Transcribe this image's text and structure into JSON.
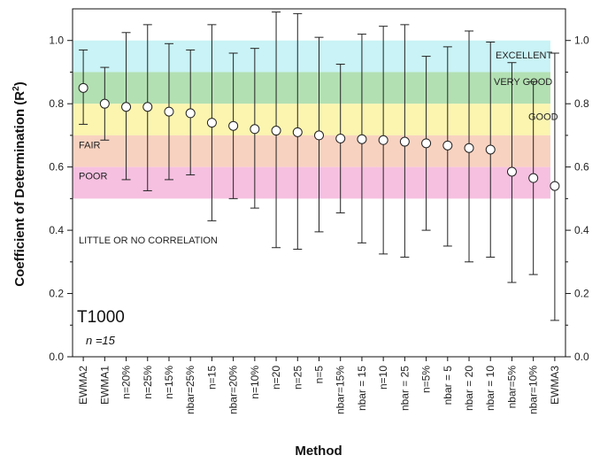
{
  "chart_data": {
    "type": "scatter",
    "title": "",
    "xlabel": "Method",
    "ylabel": "Coefficient of Determination (R",
    "ylabel_sup": "2",
    "ylabel_end": ")",
    "ylim": [
      0.0,
      1.1
    ],
    "yticks": [
      0.0,
      0.2,
      0.4,
      0.6,
      0.8,
      1.0
    ],
    "ytick_labels": [
      "0.0",
      "0.2",
      "0.4",
      "0.6",
      "0.8",
      "1.0"
    ],
    "panel_label": "T1000",
    "n_label": "n =15",
    "bands": [
      {
        "label": "EXCELLENT",
        "from": 0.9,
        "to": 1.0,
        "color": "#c9f3f6"
      },
      {
        "label": "VERY GOOD",
        "from": 0.8,
        "to": 0.9,
        "color": "#b3e0b3"
      },
      {
        "label": "GOOD",
        "from": 0.7,
        "to": 0.8,
        "color": "#fbf5b0"
      },
      {
        "label": "FAIR",
        "from": 0.6,
        "to": 0.7,
        "color": "#f8d2c0"
      },
      {
        "label": "POOR",
        "from": 0.5,
        "to": 0.6,
        "color": "#f6c0e0"
      },
      {
        "label": "LITTLE OR NO CORRELATION",
        "from": 0.0,
        "to": 0.5,
        "color": "#ffffff"
      }
    ],
    "categories": [
      "EWMA2",
      "EWMA1",
      "n=20%",
      "n=25%",
      "n=15%",
      "nbar=25%",
      "n=15",
      "nbar=20%",
      "n=10%",
      "n=20",
      "n=25",
      "n=5",
      "nbar=15%",
      "nbar = 15",
      "n=10",
      "nbar = 25",
      "n=5%",
      "nbar = 5",
      "nbar = 20",
      "nbar = 10",
      "nbar=5%",
      "nbar=10%",
      "EWMA3"
    ],
    "values": [
      0.85,
      0.8,
      0.79,
      0.79,
      0.775,
      0.77,
      0.74,
      0.73,
      0.72,
      0.715,
      0.71,
      0.7,
      0.69,
      0.688,
      0.685,
      0.68,
      0.675,
      0.668,
      0.66,
      0.655,
      0.585,
      0.565,
      0.54
    ],
    "lower": [
      0.735,
      0.685,
      0.56,
      0.525,
      0.56,
      0.575,
      0.43,
      0.5,
      0.47,
      0.345,
      0.34,
      0.395,
      0.455,
      0.36,
      0.325,
      0.315,
      0.4,
      0.35,
      0.3,
      0.315,
      0.235,
      0.26,
      0.115
    ],
    "upper": [
      0.97,
      0.915,
      1.025,
      1.05,
      0.99,
      0.97,
      1.05,
      0.96,
      0.975,
      1.09,
      1.085,
      1.01,
      0.925,
      1.02,
      1.045,
      1.05,
      0.95,
      0.98,
      1.03,
      0.995,
      0.93,
      0.87,
      0.96
    ]
  }
}
